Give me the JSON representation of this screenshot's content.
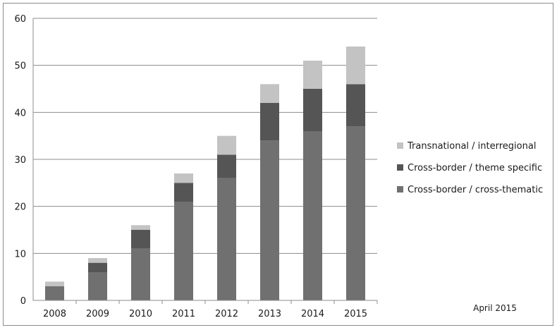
{
  "chart_data": {
    "type": "bar",
    "stacked": true,
    "categories": [
      "2008",
      "2009",
      "2010",
      "2011",
      "2012",
      "2013",
      "2014",
      "2015"
    ],
    "series": [
      {
        "name": "Cross-border / cross-thematic",
        "color": "#707070",
        "values": [
          3,
          6,
          11,
          21,
          26,
          34,
          36,
          37
        ]
      },
      {
        "name": "Cross-border / theme specific",
        "color": "#555555",
        "values": [
          0,
          2,
          4,
          4,
          5,
          8,
          9,
          9
        ]
      },
      {
        "name": "Transnational / interregional",
        "color": "#c3c3c3",
        "values": [
          1,
          1,
          1,
          2,
          4,
          4,
          6,
          8
        ]
      }
    ],
    "legend_order": [
      "Transnational / interregional",
      "Cross-border / theme specific",
      "Cross-border / cross-thematic"
    ],
    "ylim": [
      0,
      60
    ],
    "yticks": [
      0,
      10,
      20,
      30,
      40,
      50,
      60
    ],
    "grid": true,
    "legend_position": "right",
    "annotation": "April 2015"
  }
}
